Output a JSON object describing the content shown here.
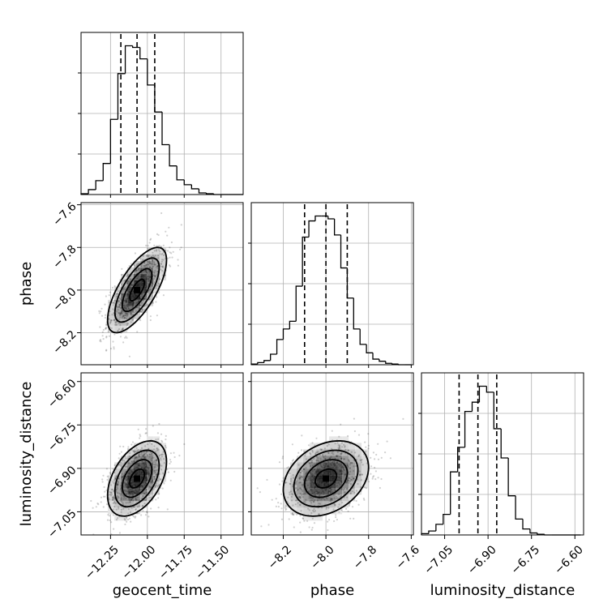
{
  "chart_data": {
    "type": "corner",
    "parameters": [
      {
        "name": "geocent_time",
        "range": [
          -12.45,
          -11.35
        ],
        "ticks": [
          -12.25,
          -12.0,
          -11.75,
          -11.5
        ],
        "tick_labels": [
          "−12.25",
          "−12.00",
          "−11.75",
          "−11.50"
        ],
        "quantiles": [
          -12.18,
          -12.07,
          -11.95
        ],
        "median": -12.07,
        "sigma": 0.1
      },
      {
        "name": "phase",
        "range": [
          -8.35,
          -7.59
        ],
        "ticks": [
          -8.2,
          -8.0,
          -7.8,
          -7.6
        ],
        "tick_labels": [
          "−8.2",
          "−8.0",
          "−7.8",
          "−7.6"
        ],
        "quantiles": [
          -8.1,
          -8.0,
          -7.9
        ],
        "median": -8.0,
        "sigma": 0.1
      },
      {
        "name": "luminosity_distance",
        "range": [
          -7.13,
          -6.57
        ],
        "ticks": [
          -7.05,
          -6.9,
          -6.75,
          -6.6
        ],
        "tick_labels": [
          "−7.05",
          "−6.90",
          "−6.75",
          "−6.60"
        ],
        "quantiles": [
          -7.0,
          -6.935,
          -6.87
        ],
        "median": -6.935,
        "sigma": 0.065
      }
    ],
    "histograms": {
      "geocent_time": {
        "bin_edges": [
          -12.45,
          -12.4,
          -12.35,
          -12.3,
          -12.25,
          -12.2,
          -12.15,
          -12.1,
          -12.05,
          -12.0,
          -11.95,
          -11.9,
          -11.85,
          -11.8,
          -11.75,
          -11.7,
          -11.65,
          -11.6,
          -11.55,
          -11.5,
          -11.45,
          -11.4,
          -11.35
        ],
        "counts": [
          1,
          6,
          17,
          38,
          92,
          148,
          182,
          180,
          166,
          134,
          101,
          61,
          35,
          18,
          12,
          7,
          2,
          1,
          0,
          0,
          0,
          0
        ]
      },
      "phase": {
        "bin_edges": [
          -8.35,
          -8.32,
          -8.29,
          -8.26,
          -8.23,
          -8.2,
          -8.17,
          -8.14,
          -8.11,
          -8.08,
          -8.05,
          -8.02,
          -7.99,
          -7.96,
          -7.93,
          -7.9,
          -7.87,
          -7.84,
          -7.81,
          -7.78,
          -7.75,
          -7.72,
          -7.69,
          -7.66,
          -7.63,
          -7.6
        ],
        "counts": [
          1,
          3,
          6,
          15,
          36,
          51,
          62,
          112,
          182,
          205,
          212,
          212,
          208,
          185,
          138,
          95,
          51,
          29,
          17,
          8,
          5,
          2,
          1,
          0,
          0
        ]
      },
      "luminosity_distance": {
        "bin_edges": [
          -7.13,
          -7.105,
          -7.08,
          -7.055,
          -7.03,
          -7.005,
          -6.98,
          -6.955,
          -6.93,
          -6.905,
          -6.88,
          -6.855,
          -6.83,
          -6.805,
          -6.78,
          -6.755,
          -6.73,
          -6.705,
          -6.68,
          -6.655,
          -6.63,
          -6.605,
          -6.58
        ],
        "counts": [
          2,
          6,
          16,
          31,
          95,
          132,
          186,
          200,
          224,
          215,
          160,
          116,
          59,
          24,
          9,
          3,
          1,
          0,
          0,
          0,
          0,
          0
        ]
      }
    },
    "pairs": [
      {
        "x": "geocent_time",
        "y": "phase",
        "correlation": 0.7
      },
      {
        "x": "geocent_time",
        "y": "luminosity_distance",
        "correlation": 0.45
      },
      {
        "x": "phase",
        "y": "luminosity_distance",
        "correlation": 0.3
      }
    ],
    "contour_levels_sigma": [
      0.5,
      1.0,
      1.5,
      2.0
    ],
    "grid": true
  }
}
